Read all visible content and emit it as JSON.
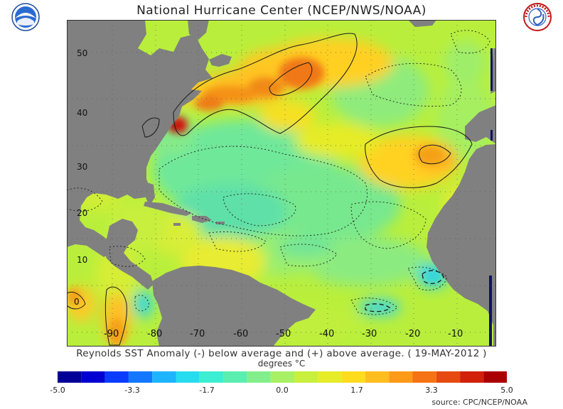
{
  "title": "National Hurricane Center (NCEP/NWS/NOAA)",
  "caption": "Reynolds SST Anomaly (-) below average and (+) above average. ( 19-MAY-2012 )",
  "units": "degrees °C",
  "source": "source:  CPC/NCEP/NOAA",
  "logos": {
    "left": "noaa-logo",
    "right": "nws-logo"
  },
  "map": {
    "lat_labels": [
      "50",
      "40",
      "30",
      "20",
      "10",
      "0"
    ],
    "lon_labels": [
      "-90",
      "-80",
      "-70",
      "-60",
      "-50",
      "-40",
      "-30",
      "-20",
      "-10"
    ],
    "land_color": "#808080",
    "base_color": "#b8f03a"
  },
  "colorbar": {
    "min": -5.0,
    "max": 5.0,
    "tick_labels": [
      "-5.0",
      "-3.3",
      "-1.7",
      "0.0",
      "1.7",
      "3.3",
      "5.0"
    ]
  }
}
